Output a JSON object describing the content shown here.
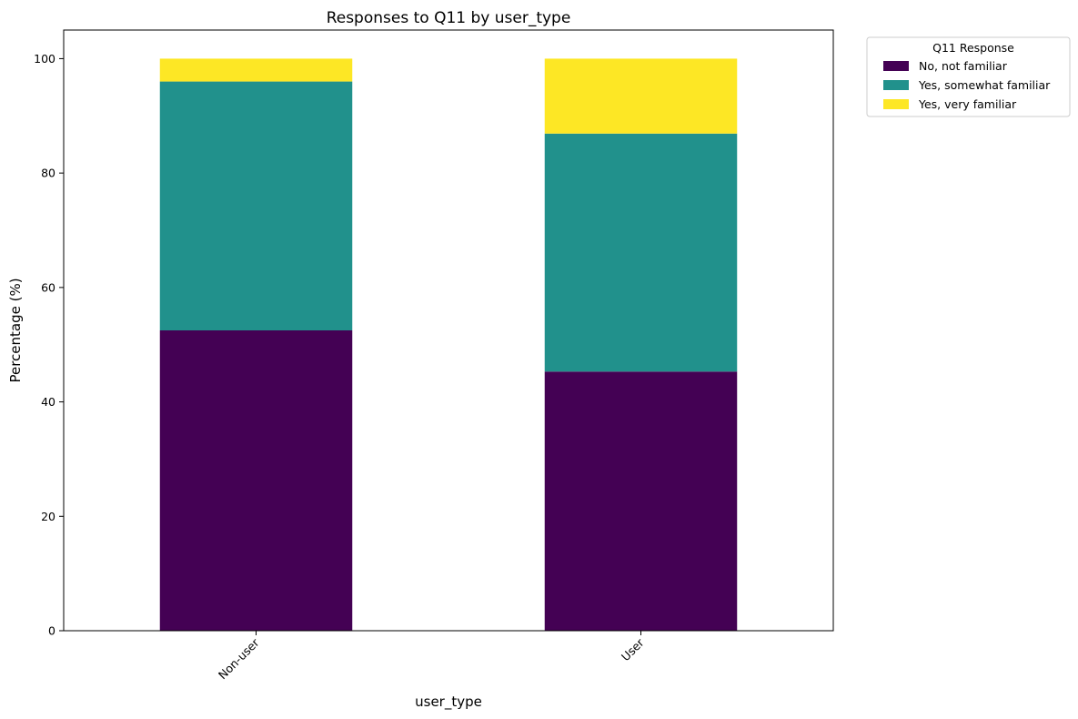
{
  "chart_data": {
    "type": "bar",
    "stacked": true,
    "title": "Responses to Q11 by user_type",
    "xlabel": "user_type",
    "ylabel": "Percentage (%)",
    "categories": [
      "Non-user",
      "User"
    ],
    "ylim": [
      0,
      105
    ],
    "yticks": [
      0,
      20,
      40,
      60,
      80,
      100
    ],
    "grid": false,
    "legend": {
      "title": "Q11 Response",
      "placement": "outside-top-right"
    },
    "series": [
      {
        "name": "No, not familiar",
        "color": "#440154",
        "values": [
          52.5,
          45.3
        ]
      },
      {
        "name": "Yes, somewhat familiar",
        "color": "#21918c",
        "values": [
          43.5,
          41.6
        ]
      },
      {
        "name": "Yes, very familiar",
        "color": "#fde725",
        "values": [
          4.0,
          13.1
        ]
      }
    ]
  }
}
